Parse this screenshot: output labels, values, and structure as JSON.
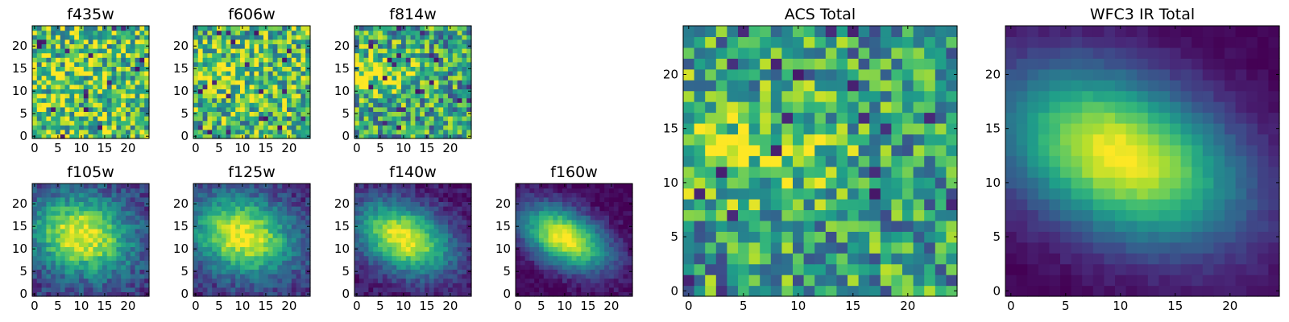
{
  "chart_data": [
    {
      "id": "f435w",
      "type": "heatmap",
      "title": "f435w",
      "colormap": "viridis",
      "grid_size": 25,
      "xticks": [
        0,
        5,
        10,
        15,
        20
      ],
      "yticks": [
        0,
        5,
        10,
        15,
        20
      ],
      "xlim": [
        0,
        24
      ],
      "ylim": [
        0,
        24
      ],
      "pattern": {
        "kind": "noise",
        "base": 0.72,
        "spread": 0.38
      }
    },
    {
      "id": "f606w",
      "type": "heatmap",
      "title": "f606w",
      "colormap": "viridis",
      "grid_size": 25,
      "xticks": [
        0,
        5,
        10,
        15,
        20
      ],
      "yticks": [
        0,
        5,
        10,
        15,
        20
      ],
      "xlim": [
        0,
        24
      ],
      "ylim": [
        0,
        24
      ],
      "pattern": {
        "kind": "noise",
        "base": 0.66,
        "spread": 0.36,
        "blob": {
          "cx": 6,
          "cy": 14,
          "amp": 0.15
        }
      }
    },
    {
      "id": "f814w",
      "type": "heatmap",
      "title": "f814w",
      "colormap": "viridis",
      "grid_size": 25,
      "xticks": [
        0,
        5,
        10,
        15,
        20
      ],
      "yticks": [
        0,
        5,
        10,
        15,
        20
      ],
      "xlim": [
        0,
        24
      ],
      "ylim": [
        0,
        24
      ],
      "pattern": {
        "kind": "noise",
        "base": 0.58,
        "spread": 0.36,
        "blob": {
          "cx": 5,
          "cy": 14,
          "amp": 0.3
        }
      }
    },
    {
      "id": "f105w",
      "type": "heatmap",
      "title": "f105w",
      "colormap": "viridis",
      "grid_size": 25,
      "xticks": [
        0,
        5,
        10,
        15,
        20
      ],
      "yticks": [
        0,
        5,
        10,
        15,
        20
      ],
      "xlim": [
        0,
        24
      ],
      "ylim": [
        0,
        24
      ],
      "pattern": {
        "kind": "gaussian",
        "cx": 10,
        "cy": 13,
        "sx": 7.5,
        "sy": 6,
        "rho": -0.15,
        "noise": 0.14,
        "floor": 0.15
      }
    },
    {
      "id": "f125w",
      "type": "heatmap",
      "title": "f125w",
      "colormap": "viridis",
      "grid_size": 25,
      "xticks": [
        0,
        5,
        10,
        15,
        20
      ],
      "yticks": [
        0,
        5,
        10,
        15,
        20
      ],
      "xlim": [
        0,
        24
      ],
      "ylim": [
        0,
        24
      ],
      "pattern": {
        "kind": "gaussian",
        "cx": 10,
        "cy": 13,
        "sx": 7.5,
        "sy": 6,
        "rho": -0.2,
        "noise": 0.12,
        "floor": 0.12
      }
    },
    {
      "id": "f140w",
      "type": "heatmap",
      "title": "f140w",
      "colormap": "viridis",
      "grid_size": 25,
      "xticks": [
        0,
        5,
        10,
        15,
        20
      ],
      "yticks": [
        0,
        5,
        10,
        15,
        20
      ],
      "xlim": [
        0,
        24
      ],
      "ylim": [
        0,
        24
      ],
      "pattern": {
        "kind": "gaussian",
        "cx": 10,
        "cy": 12.5,
        "sx": 7,
        "sy": 5.5,
        "rho": -0.35,
        "noise": 0.09,
        "floor": 0.05
      }
    },
    {
      "id": "f160w",
      "type": "heatmap",
      "title": "f160w",
      "colormap": "viridis",
      "grid_size": 25,
      "xticks": [
        0,
        5,
        10,
        15,
        20
      ],
      "yticks": [
        0,
        5,
        10,
        15,
        20
      ],
      "xlim": [
        0,
        24
      ],
      "ylim": [
        0,
        24
      ],
      "pattern": {
        "kind": "gaussian",
        "cx": 10,
        "cy": 12.5,
        "sx": 6.5,
        "sy": 5,
        "rho": -0.45,
        "noise": 0.07,
        "floor": 0.0
      }
    },
    {
      "id": "acs-total",
      "type": "heatmap",
      "title": "ACS Total",
      "colormap": "viridis",
      "grid_size": 25,
      "xticks": [
        0,
        5,
        10,
        15,
        20
      ],
      "yticks": [
        0,
        5,
        10,
        15,
        20
      ],
      "xlim": [
        0,
        24
      ],
      "ylim": [
        0,
        24
      ],
      "pattern": {
        "kind": "noise",
        "base": 0.56,
        "spread": 0.34,
        "blob": {
          "cx": 5,
          "cy": 13.5,
          "amp": 0.3
        }
      }
    },
    {
      "id": "wfc3-ir-total",
      "type": "heatmap",
      "title": "WFC3 IR Total",
      "colormap": "viridis",
      "grid_size": 25,
      "xticks": [
        0,
        5,
        10,
        15,
        20
      ],
      "yticks": [
        0,
        5,
        10,
        15,
        20
      ],
      "xlim": [
        0,
        24
      ],
      "ylim": [
        0,
        24
      ],
      "pattern": {
        "kind": "gaussian",
        "cx": 10,
        "cy": 12.5,
        "sx": 7.5,
        "sy": 5.5,
        "rho": -0.35,
        "noise": 0.03,
        "floor": 0.0
      }
    }
  ]
}
